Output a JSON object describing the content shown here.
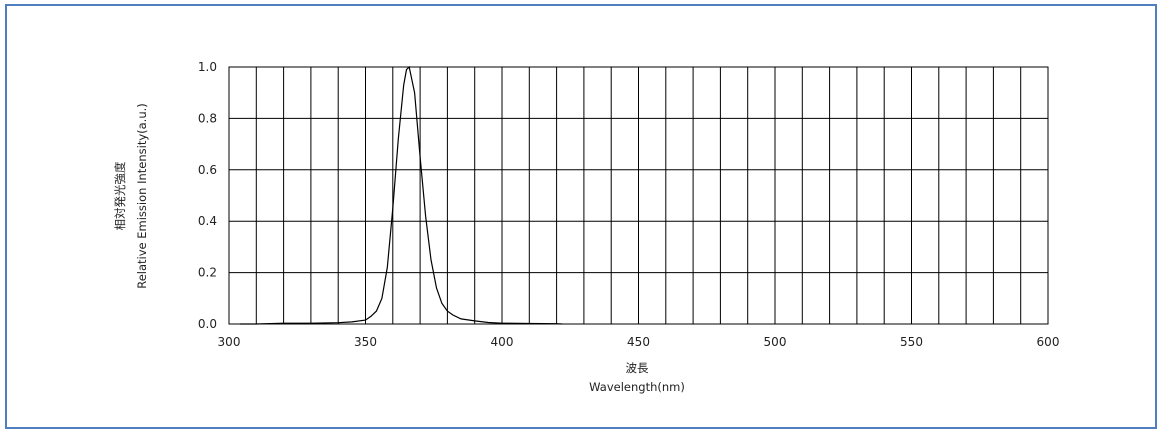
{
  "chart_data": {
    "type": "line",
    "xlabel_ja": "波長",
    "xlabel": "Wavelength(nm)",
    "ylabel_ja": "相対発光強度",
    "ylabel": "Relative Emission Intensity(a.u.)",
    "xlim": [
      300,
      600
    ],
    "ylim": [
      0,
      1.0
    ],
    "x_ticks": [
      "300",
      "350",
      "400",
      "450",
      "500",
      "550",
      "600"
    ],
    "y_ticks": [
      "0.0",
      "0.2",
      "0.4",
      "0.6",
      "0.8",
      "1.0"
    ],
    "grid": "vertical lines every 10 nm, horizontal lines every 0.2",
    "series": [
      {
        "x": [
          304,
          310,
          320,
          330,
          340,
          345,
          350,
          352,
          354,
          356,
          358,
          360,
          362,
          364,
          365,
          366,
          368,
          370,
          372,
          374,
          376,
          378,
          380,
          382,
          385,
          390,
          395,
          400,
          410,
          420,
          422
        ],
        "y": [
          0.0,
          0.0,
          0.003,
          0.003,
          0.005,
          0.008,
          0.015,
          0.03,
          0.05,
          0.1,
          0.22,
          0.45,
          0.72,
          0.93,
          0.99,
          1.0,
          0.9,
          0.65,
          0.42,
          0.25,
          0.14,
          0.08,
          0.05,
          0.035,
          0.02,
          0.012,
          0.006,
          0.003,
          0.002,
          0.001,
          0.0
        ]
      }
    ],
    "color": "#000000"
  }
}
